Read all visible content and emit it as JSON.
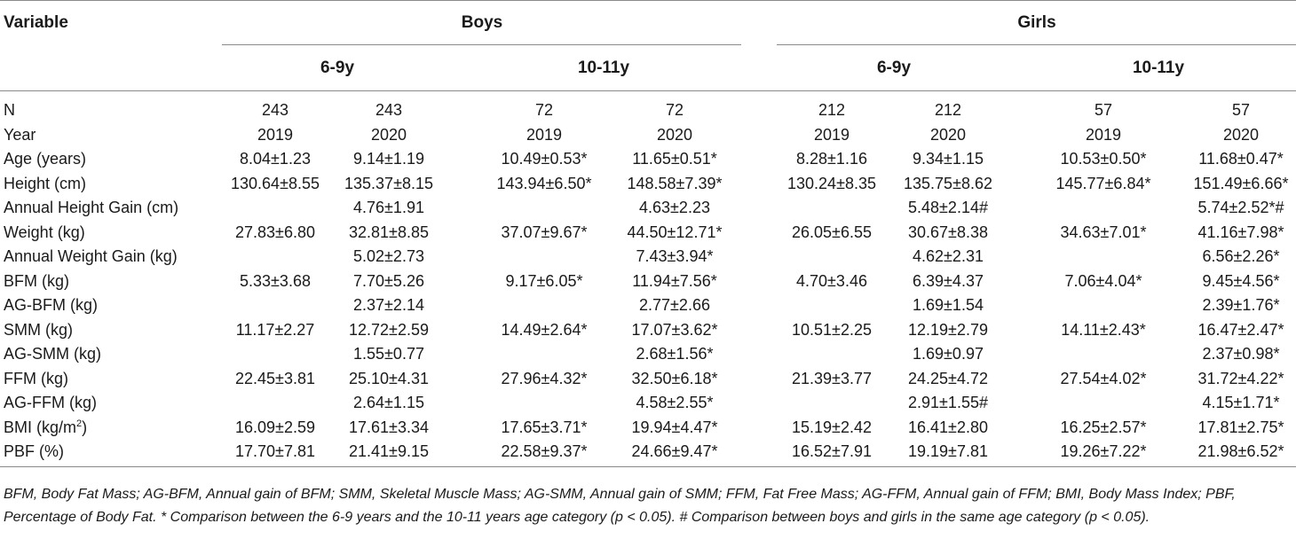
{
  "table": {
    "header": {
      "variable": "Variable",
      "groups": [
        "Boys",
        "Girls"
      ],
      "subgroups": [
        "6-9y",
        "10-11y",
        "6-9y",
        "10-11y"
      ]
    },
    "rows": [
      {
        "label": "N",
        "cells": [
          "243",
          "243",
          "72",
          "72",
          "212",
          "212",
          "57",
          "57"
        ]
      },
      {
        "label": "Year",
        "cells": [
          "2019",
          "2020",
          "2019",
          "2020",
          "2019",
          "2020",
          "2019",
          "2020"
        ]
      },
      {
        "label": "Age (years)",
        "cells": [
          "8.04±1.23",
          "9.14±1.19",
          "10.49±0.53*",
          "11.65±0.51*",
          "8.28±1.16",
          "9.34±1.15",
          "10.53±0.50*",
          "11.68±0.47*"
        ]
      },
      {
        "label": "Height (cm)",
        "cells": [
          "130.64±8.55",
          "135.37±8.15",
          "143.94±6.50*",
          "148.58±7.39*",
          "130.24±8.35",
          "135.75±8.62",
          "145.77±6.84*",
          "151.49±6.66*"
        ]
      },
      {
        "label": "Annual Height Gain (cm)",
        "cells": [
          "",
          "4.76±1.91",
          "",
          "4.63±2.23",
          "",
          "5.48±2.14#",
          "",
          "5.74±2.52*#"
        ]
      },
      {
        "label": "Weight (kg)",
        "cells": [
          "27.83±6.80",
          "32.81±8.85",
          "37.07±9.67*",
          "44.50±12.71*",
          "26.05±6.55",
          "30.67±8.38",
          "34.63±7.01*",
          "41.16±7.98*"
        ]
      },
      {
        "label": "Annual Weight Gain (kg)",
        "cells": [
          "",
          "5.02±2.73",
          "",
          "7.43±3.94*",
          "",
          "4.62±2.31",
          "",
          "6.56±2.26*"
        ]
      },
      {
        "label": "BFM (kg)",
        "cells": [
          "5.33±3.68",
          "7.70±5.26",
          "9.17±6.05*",
          "11.94±7.56*",
          "4.70±3.46",
          "6.39±4.37",
          "7.06±4.04*",
          "9.45±4.56*"
        ]
      },
      {
        "label": "AG-BFM (kg)",
        "cells": [
          "",
          "2.37±2.14",
          "",
          "2.77±2.66",
          "",
          "1.69±1.54",
          "",
          "2.39±1.76*"
        ]
      },
      {
        "label": "SMM (kg)",
        "cells": [
          "11.17±2.27",
          "12.72±2.59",
          "14.49±2.64*",
          "17.07±3.62*",
          "10.51±2.25",
          "12.19±2.79",
          "14.11±2.43*",
          "16.47±2.47*"
        ]
      },
      {
        "label": "AG-SMM (kg)",
        "cells": [
          "",
          "1.55±0.77",
          "",
          "2.68±1.56*",
          "",
          "1.69±0.97",
          "",
          "2.37±0.98*"
        ]
      },
      {
        "label": "FFM (kg)",
        "cells": [
          "22.45±3.81",
          "25.10±4.31",
          "27.96±4.32*",
          "32.50±6.18*",
          "21.39±3.77",
          "24.25±4.72",
          "27.54±4.02*",
          "31.72±4.22*"
        ]
      },
      {
        "label": "AG-FFM (kg)",
        "cells": [
          "",
          "2.64±1.15",
          "",
          "4.58±2.55*",
          "",
          "2.91±1.55#",
          "",
          "4.15±1.71*"
        ]
      },
      {
        "label": "BMI (kg/m",
        "label_sup": "2",
        "label_tail": ")",
        "cells": [
          "16.09±2.59",
          "17.61±3.34",
          "17.65±3.71*",
          "19.94±4.47*",
          "15.19±2.42",
          "16.41±2.80",
          "16.25±2.57*",
          "17.81±2.75*"
        ]
      },
      {
        "label": "PBF (%)",
        "cells": [
          "17.70±7.81",
          "21.41±9.15",
          "22.58±9.37*",
          "24.66±9.47*",
          "16.52±7.91",
          "19.19±7.81",
          "19.26±7.22*",
          "21.98±6.52*"
        ]
      }
    ],
    "footnote": "BFM, Body Fat Mass; AG-BFM, Annual gain of BFM; SMM, Skeletal Muscle Mass; AG-SMM, Annual gain of SMM; FFM, Fat Free Mass; AG-FFM, Annual gain of FFM; BMI, Body Mass Index; PBF, Percentage of Body Fat. * Comparison between the 6-9 years and the 10-11 years age category (p < 0.05). # Comparison between boys and girls in the same age category (p < 0.05)."
  }
}
